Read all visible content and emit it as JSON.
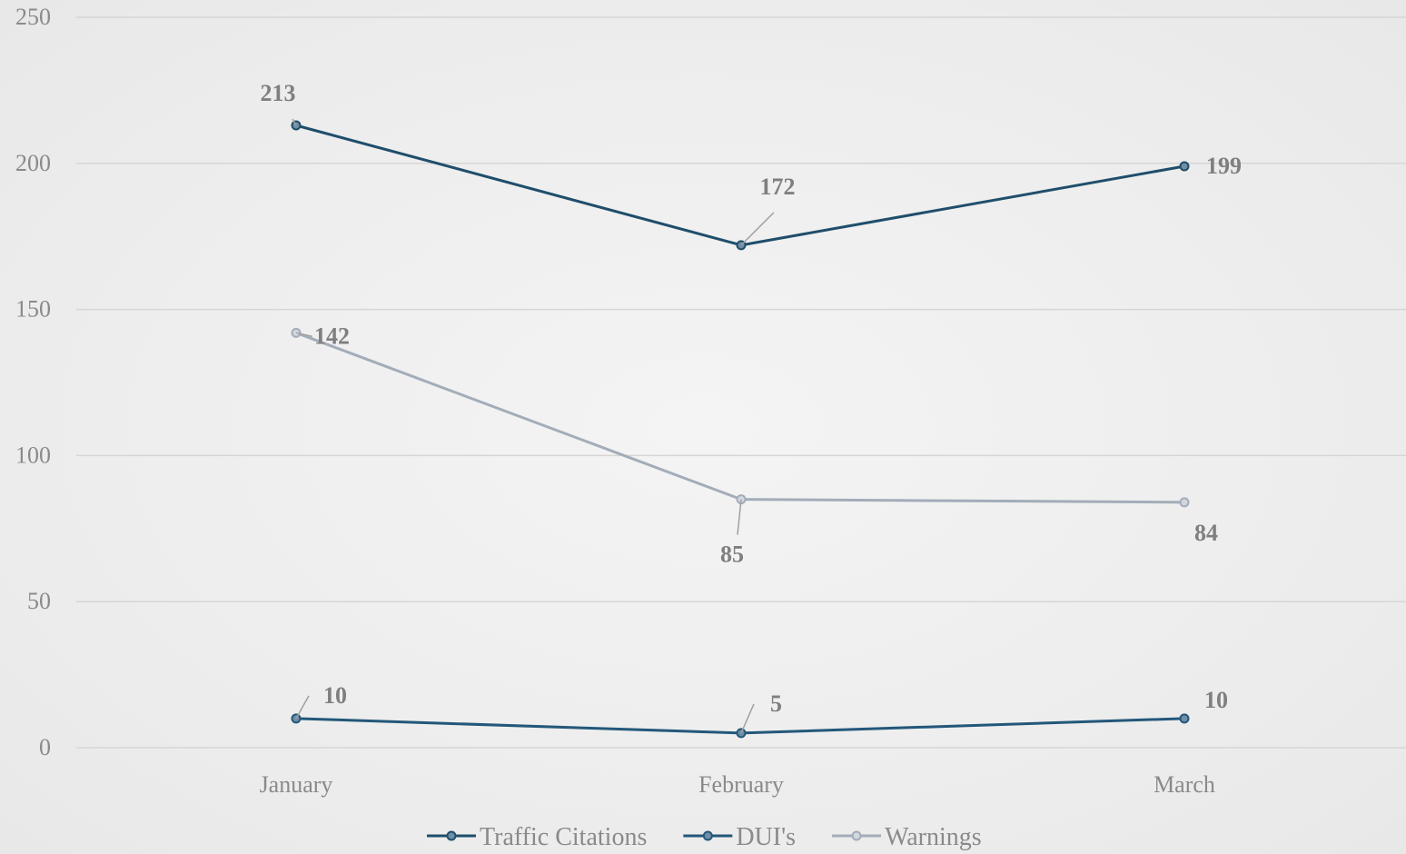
{
  "chart_data": {
    "type": "line",
    "title": "",
    "xlabel": "",
    "ylabel": "",
    "categories": [
      "January",
      "February",
      "March"
    ],
    "ylim": [
      0,
      250
    ],
    "yticks": [
      0,
      50,
      100,
      150,
      200,
      250
    ],
    "grid": true,
    "legend_position": "bottom",
    "series": [
      {
        "name": "Traffic Citations",
        "values": [
          213,
          172,
          199
        ],
        "color": "#1f4e6b"
      },
      {
        "name": "DUI's",
        "values": [
          10,
          5,
          10
        ],
        "color": "#23577a"
      },
      {
        "name": "Warnings",
        "values": [
          142,
          85,
          84
        ],
        "color": "#a3acb9"
      }
    ]
  }
}
